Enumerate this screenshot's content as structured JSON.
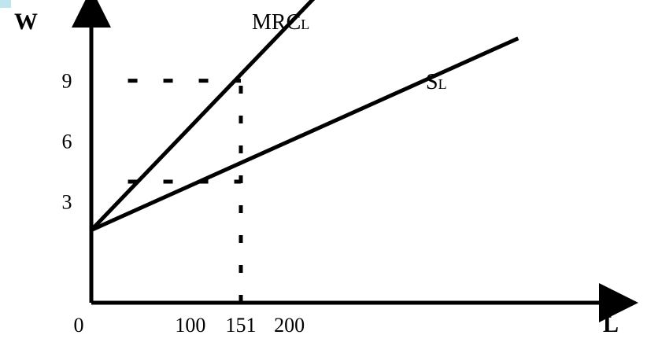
{
  "chart_data": {
    "type": "line",
    "title": "",
    "xlabel": "L",
    "ylabel": "W",
    "x_ticks": [
      {
        "value": 0,
        "label": "0"
      },
      {
        "value": 100,
        "label": "100"
      },
      {
        "value": 151,
        "label": "151"
      },
      {
        "value": 200,
        "label": "200"
      }
    ],
    "y_ticks": [
      {
        "value": 3,
        "label": "3"
      },
      {
        "value": 6,
        "label": "6"
      },
      {
        "value": 9,
        "label": "9"
      }
    ],
    "xlim": [
      0,
      352
    ],
    "ylim": [
      -2,
      13
    ],
    "grid": false,
    "series": [
      {
        "name": "MRC",
        "name_sub": "L",
        "x": [
          0,
          227
        ],
        "y": [
          1.6,
          13.2
        ],
        "color": "#000000"
      },
      {
        "name": "S",
        "name_sub": "L",
        "x": [
          0,
          431
        ],
        "y": [
          1.6,
          11.1
        ],
        "color": "#000000"
      }
    ],
    "reference_lines": [
      {
        "orientation": "vertical",
        "x": 151,
        "y_from": -2,
        "y_to": 9
      },
      {
        "orientation": "horizontal",
        "y": 9,
        "x_from": 37,
        "x_to": 151
      },
      {
        "orientation": "horizontal",
        "y": 4,
        "x_from": 37,
        "x_to": 151
      }
    ]
  }
}
